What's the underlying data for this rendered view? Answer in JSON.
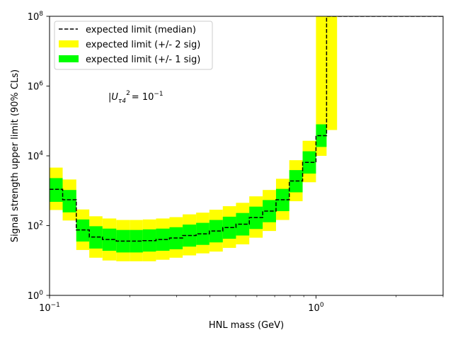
{
  "chart_data": {
    "type": "area",
    "xlabel": "HNL mass (GeV)",
    "ylabel": "Signal strength upper limit (90% CLs)",
    "xscale": "log",
    "yscale": "log",
    "xlim": [
      0.1,
      3.0
    ],
    "ylim": [
      1,
      100000000
    ],
    "grid": false,
    "legend_placement": "top-left",
    "annotation": {
      "text_base": "|U",
      "text_sub": "τ4",
      "text_sup": "2",
      "text_rest": "= 10",
      "text_exp": "−1",
      "x": 0.165,
      "y": 400000
    },
    "legend": [
      {
        "label": "expected limit (median)",
        "kind": "dash",
        "color": "#000000"
      },
      {
        "label": "expected limit (+/- 2 sig)",
        "kind": "patch",
        "color": "#ffff00"
      },
      {
        "label": "expected limit (+/- 1 sig)",
        "kind": "patch",
        "color": "#00ff00"
      }
    ],
    "x_ticks": [
      {
        "value": 0.1,
        "base": "10",
        "exp": "−1"
      },
      {
        "value": 1,
        "base": "10",
        "exp": "0"
      }
    ],
    "y_ticks": [
      {
        "value": 1,
        "base": "10",
        "exp": "0"
      },
      {
        "value": 100,
        "base": "10",
        "exp": "2"
      },
      {
        "value": 10000,
        "base": "10",
        "exp": "4"
      },
      {
        "value": 1000000,
        "base": "10",
        "exp": "6"
      },
      {
        "value": 100000000,
        "base": "10",
        "exp": "8"
      }
    ],
    "colors": {
      "band2": "#ffff00",
      "band1": "#00ff00",
      "median": "#000000"
    },
    "bins": [
      {
        "x0": 0.1,
        "x1": 0.112,
        "median": 1100,
        "s1_lo": 480,
        "s1_hi": 2300,
        "s2_lo": 280,
        "s2_hi": 4600
      },
      {
        "x0": 0.112,
        "x1": 0.126,
        "median": 550,
        "s1_lo": 240,
        "s1_hi": 1050,
        "s2_lo": 140,
        "s2_hi": 2100
      },
      {
        "x0": 0.126,
        "x1": 0.141,
        "median": 75,
        "s1_lo": 35,
        "s1_hi": 150,
        "s2_lo": 20,
        "s2_hi": 290
      },
      {
        "x0": 0.141,
        "x1": 0.158,
        "median": 47,
        "s1_lo": 22,
        "s1_hi": 96,
        "s2_lo": 12,
        "s2_hi": 185
      },
      {
        "x0": 0.158,
        "x1": 0.178,
        "median": 40,
        "s1_lo": 19,
        "s1_hi": 82,
        "s2_lo": 10,
        "s2_hi": 160
      },
      {
        "x0": 0.178,
        "x1": 0.2,
        "median": 36,
        "s1_lo": 17,
        "s1_hi": 75,
        "s2_lo": 9.5,
        "s2_hi": 145
      },
      {
        "x0": 0.2,
        "x1": 0.224,
        "median": 36,
        "s1_lo": 17,
        "s1_hi": 75,
        "s2_lo": 9.5,
        "s2_hi": 145
      },
      {
        "x0": 0.224,
        "x1": 0.251,
        "median": 37,
        "s1_lo": 18,
        "s1_hi": 78,
        "s2_lo": 9.5,
        "s2_hi": 150
      },
      {
        "x0": 0.251,
        "x1": 0.282,
        "median": 40,
        "s1_lo": 19,
        "s1_hi": 82,
        "s2_lo": 10.5,
        "s2_hi": 160
      },
      {
        "x0": 0.282,
        "x1": 0.316,
        "median": 44,
        "s1_lo": 21,
        "s1_hi": 90,
        "s2_lo": 12,
        "s2_hi": 175
      },
      {
        "x0": 0.316,
        "x1": 0.355,
        "median": 52,
        "s1_lo": 25,
        "s1_hi": 107,
        "s2_lo": 14,
        "s2_hi": 210
      },
      {
        "x0": 0.355,
        "x1": 0.398,
        "median": 58,
        "s1_lo": 28,
        "s1_hi": 120,
        "s2_lo": 16,
        "s2_hi": 235
      },
      {
        "x0": 0.398,
        "x1": 0.447,
        "median": 70,
        "s1_lo": 33,
        "s1_hi": 145,
        "s2_lo": 18,
        "s2_hi": 285
      },
      {
        "x0": 0.447,
        "x1": 0.501,
        "median": 88,
        "s1_lo": 42,
        "s1_hi": 180,
        "s2_lo": 23,
        "s2_hi": 360
      },
      {
        "x0": 0.501,
        "x1": 0.562,
        "median": 110,
        "s1_lo": 52,
        "s1_hi": 230,
        "s2_lo": 29,
        "s2_hi": 450
      },
      {
        "x0": 0.562,
        "x1": 0.631,
        "median": 170,
        "s1_lo": 80,
        "s1_hi": 350,
        "s2_lo": 45,
        "s2_hi": 690
      },
      {
        "x0": 0.631,
        "x1": 0.708,
        "median": 260,
        "s1_lo": 125,
        "s1_hi": 540,
        "s2_lo": 70,
        "s2_hi": 1050
      },
      {
        "x0": 0.708,
        "x1": 0.794,
        "median": 550,
        "s1_lo": 260,
        "s1_hi": 1130,
        "s2_lo": 145,
        "s2_hi": 2200
      },
      {
        "x0": 0.794,
        "x1": 0.891,
        "median": 1900,
        "s1_lo": 900,
        "s1_hi": 3900,
        "s2_lo": 500,
        "s2_hi": 7500
      },
      {
        "x0": 0.891,
        "x1": 1.0,
        "median": 6500,
        "s1_lo": 3100,
        "s1_hi": 13500,
        "s2_lo": 1750,
        "s2_hi": 27000
      },
      {
        "x0": 1.0,
        "x1": 1.096,
        "median": 38000,
        "s1_lo": 18000,
        "s1_hi": 80000,
        "s2_lo": 10000,
        "s2_hi": 100000000
      },
      {
        "x0": 1.096,
        "x1": 1.2,
        "median": 100000000,
        "s1_lo": 100000000,
        "s1_hi": 100000000,
        "s2_lo": 55000,
        "s2_hi": 100000000
      },
      {
        "x0": 1.2,
        "x1": 3.0,
        "median": 100000000,
        "s1_lo": 100000000,
        "s1_hi": 100000000,
        "s2_lo": 100000000,
        "s2_hi": 100000000
      }
    ]
  }
}
